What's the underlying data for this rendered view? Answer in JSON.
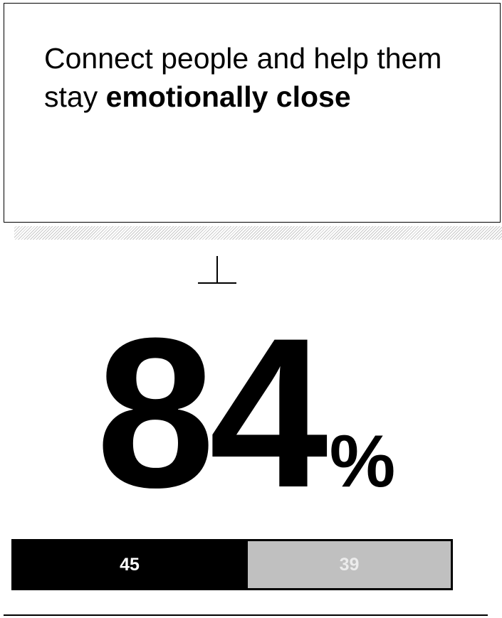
{
  "headline": {
    "text_regular": "Connect people and help them stay ",
    "text_bold": "emotionally close"
  },
  "chart_data": {
    "type": "bar",
    "title": "",
    "total": {
      "value": "84",
      "unit": "%"
    },
    "categories": [
      "segment-1",
      "segment-2"
    ],
    "values": [
      45,
      39
    ],
    "labels": [
      "45",
      "39"
    ],
    "colors": [
      "#000000",
      "#c0c0c0"
    ],
    "label_colors": [
      "#ffffff",
      "#ececec"
    ]
  }
}
